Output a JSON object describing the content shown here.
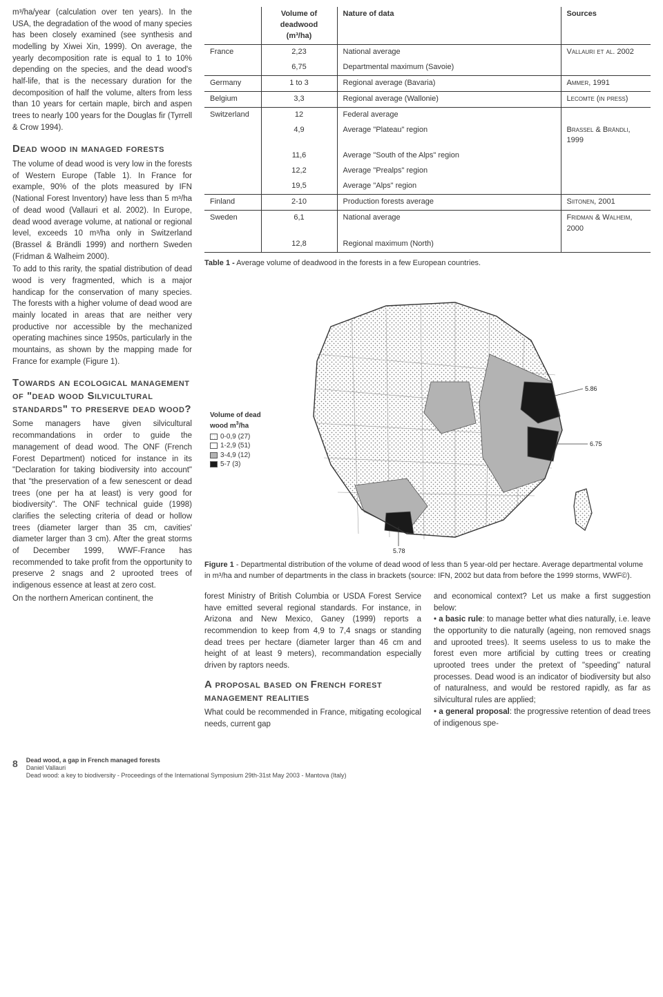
{
  "leftCol": {
    "para1": "m³/ha/year (calculation over ten years). In the USA, the degradation of the wood of many species has been closely examined (see synthesis and modelling by Xiwei Xin, 1999). On average, the yearly decomposition rate is equal to 1 to 10% depending on the species, and the dead wood's half-life, that is the necessary duration for the decomposition of half the volume, alters from less than 10 years for certain maple, birch and aspen trees to nearly 100 years for the Douglas fir (Tyrrell & Crow 1994).",
    "h1": "Dead wood in managed forests",
    "para2": "The volume of dead wood is very low in the forests of Western Europe (Table 1). In France for example, 90% of the plots measured by IFN (National Forest Inventory) have less than 5 m³/ha of dead wood (Vallauri et al. 2002). In Europe, dead wood average volume, at national or regional level, exceeds 10 m³/ha only in Switzerland (Brassel & Brändli 1999) and northern Sweden (Fridman & Walheim 2000).",
    "para3": "To add to this rarity, the spatial distribution of dead wood is very fragmented, which is a major handicap for the conservation of many species. The forests with a higher volume of dead wood are mainly located in areas that are neither very productive nor accessible by the mechanized operating machines since 1950s, particularly in the mountains, as shown by the mapping made for France for example (Figure 1).",
    "h2": "Towards an ecological management of \"dead wood Silvicultural standards\" to preserve dead wood?",
    "para4": "Some managers have given silvicultural recommandations in order to guide the management of dead wood. The ONF (French Forest Department) noticed for instance in its \"Declaration for taking biodiversity into account\" that \"the preservation of a few senescent or dead trees (one per ha at least) is very good for biodiversity\". The ONF technical guide (1998) clarifies the selecting criteria of dead or hollow trees (diameter larger than 35 cm, cavities' diameter larger than 3 cm). After the great storms of December 1999, WWF-France has recommended to take profit from the opportunity to preserve 2 snags and 2 uprooted trees of indigenous essence at least at zero cost.",
    "para5": "On the northern American continent, the"
  },
  "table": {
    "headers": [
      "",
      "Volume of deadwood (m³/ha)",
      "Nature of data",
      "Sources"
    ],
    "rows": [
      {
        "c": "France",
        "v": "2,23",
        "n": "National average",
        "s": "Vallauri et al. 2002",
        "bb": false
      },
      {
        "c": "",
        "v": "6,75",
        "n": "Departmental maximum (Savoie)",
        "s": "",
        "bb": true
      },
      {
        "c": "Germany",
        "v": "1 to 3",
        "n": "Regional average (Bavaria)",
        "s": "Ammer, 1991",
        "bb": true
      },
      {
        "c": "Belgium",
        "v": "3,3",
        "n": "Regional average (Wallonie)",
        "s": "Lecomte (in press)",
        "bb": true
      },
      {
        "c": "Switzerland",
        "v": "12",
        "n": "Federal average",
        "s": "",
        "bb": false
      },
      {
        "c": "",
        "v": "4,9",
        "n": "Average \"Plateau\" region",
        "s": "Brassel & Brändli, 1999",
        "bb": false
      },
      {
        "c": "",
        "v": "11,6",
        "n": "Average \"South of the Alps\" region",
        "s": "",
        "bb": false
      },
      {
        "c": "",
        "v": "12,2",
        "n": "Average \"Prealps\" region",
        "s": "",
        "bb": false
      },
      {
        "c": "",
        "v": "19,5",
        "n": "Average \"Alps\" region",
        "s": "",
        "bb": true
      },
      {
        "c": "Finland",
        "v": "2-10",
        "n": "Production forests average",
        "s": "Siitonen, 2001",
        "bb": true
      },
      {
        "c": "Sweden",
        "v": "6,1",
        "n": "National average",
        "s": "Fridman & Walheim, 2000",
        "bb": false
      },
      {
        "c": "",
        "v": "12,8",
        "n": "Regional maximum (North)",
        "s": "",
        "bb": true
      }
    ],
    "caption": "Table 1 - Average volume of deadwood in the forests in a few European countries."
  },
  "figure": {
    "legendTitle": "Volume of dead wood m³/ha",
    "legend": [
      {
        "label": "0-0,9 (27)",
        "fill": "#ffffff",
        "pattern": "dots"
      },
      {
        "label": "1-2,9 (51)",
        "fill": "#ffffff",
        "pattern": "none"
      },
      {
        "label": "3-4,9 (12)",
        "fill": "#b3b3b3",
        "pattern": "none"
      },
      {
        "label": "5-7 (3)",
        "fill": "#1a1a1a",
        "pattern": "none"
      }
    ],
    "labels": {
      "ne": "5.86",
      "e": "6.75",
      "s": "5.78"
    },
    "caption": "Figure 1 - Departmental distribution of the volume of dead wood of less than 5 year-old per hectare. Average departmental volume in m³/ha and number of departments in the class in brackets (source: IFN, 2002 but data from before the 1999 storms, WWF©).",
    "colors": {
      "outline": "#555",
      "light": "#ffffff",
      "mid": "#b3b3b3",
      "dark": "#1a1a1a"
    }
  },
  "bottom": {
    "col1": {
      "p1": "forest Ministry of British Columbia or USDA Forest Service have emitted several regional standards. For instance, in Arizona and New Mexico, Ganey (1999) reports a recommendion to keep from 4,9 to 7,4 snags or standing dead trees per hectare (diameter larger than 46 cm and height of at least 9 meters), recommandation especially driven by raptors needs.",
      "h": "A proposal based on French forest management realities",
      "p2": "What could be recommended in France, mitigating ecological needs, current gap"
    },
    "col2": {
      "p1": "and economical context? Let us make a first suggestion below:",
      "b1label": "a basic rule",
      "b1": ": to manage better what dies naturally, i.e. leave the opportunity to die naturally (ageing, non removed snags and uprooted trees). It seems useless to us to make the forest even more artificial by cutting trees or creating uprooted trees under the pretext of \"speeding\" natural processes. Dead wood is an indicator of biodiversity but also of naturalness, and would be restored rapidly, as far as silvicultural rules are applied;",
      "b2label": "a general proposal",
      "b2": ": the progressive retention of dead trees of indigenous spe-"
    }
  },
  "footer": {
    "page": "8",
    "title": "Dead wood, a gap in French managed forests",
    "author": "Daniel Vallauri",
    "line": "Dead wood: a key to biodiversity - Proceedings of the International Symposium 29th-31st May 2003 - Mantova (Italy)"
  }
}
